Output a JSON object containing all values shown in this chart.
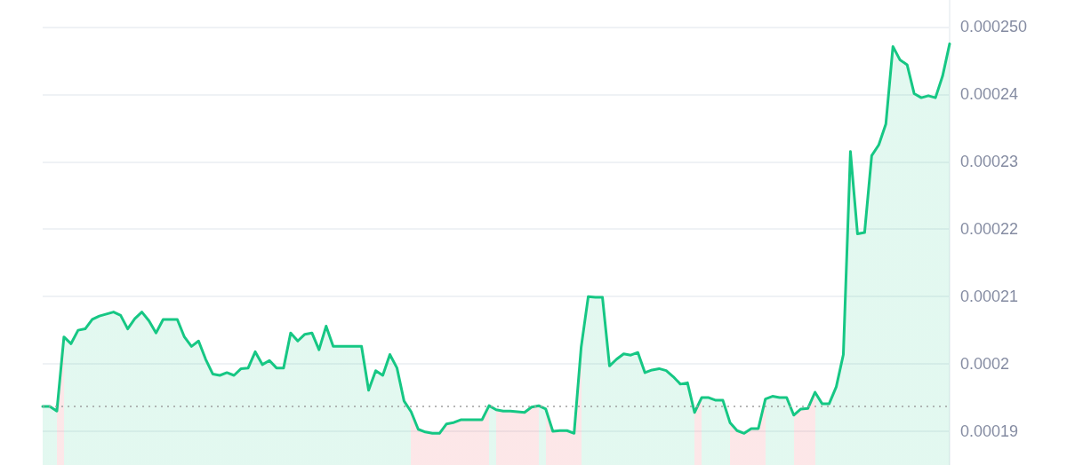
{
  "chart_data": {
    "type": "area",
    "categories": [
      null,
      null,
      null,
      null,
      null,
      null,
      null,
      null,
      null,
      null,
      null,
      null,
      null,
      null,
      null,
      null,
      null,
      null,
      null,
      null,
      null,
      null,
      null,
      null,
      null,
      null,
      null,
      null,
      null,
      null,
      null,
      null,
      null,
      null,
      null,
      null,
      null,
      null,
      null,
      null,
      null,
      null,
      null,
      null,
      null,
      null,
      null,
      null,
      null,
      null,
      null,
      null,
      null,
      null,
      null,
      null,
      null,
      null,
      null,
      null,
      null,
      null,
      null,
      null,
      null,
      null,
      null,
      null,
      null,
      null,
      null,
      null,
      null,
      null,
      null,
      null,
      null,
      null,
      null,
      null,
      null,
      null,
      null,
      null,
      null,
      null,
      null,
      null,
      null,
      null,
      null,
      null,
      null,
      null,
      null,
      null,
      null,
      null,
      null,
      null,
      null,
      null,
      null,
      null,
      null,
      null,
      null,
      null,
      null,
      null,
      null,
      null,
      null,
      null,
      null,
      null,
      null,
      null,
      null,
      null,
      null,
      null,
      null,
      null,
      null,
      null,
      null,
      null,
      null
    ],
    "series": [
      {
        "color": "#16c784",
        "values": [
          0.0001937,
          0.0001937,
          0.000193,
          0.000204,
          0.000203,
          0.000205,
          0.0002052,
          0.0002066,
          0.0002071,
          0.0002074,
          0.0002077,
          0.0002072,
          0.0002052,
          0.0002067,
          0.0002077,
          0.0002064,
          0.0002046,
          0.0002066,
          0.0002066,
          0.0002066,
          0.000204,
          0.0002026,
          0.0002034,
          0.0002007,
          0.0001985,
          0.0001983,
          0.0001987,
          0.0001983,
          0.0001993,
          0.0001994,
          0.0002018,
          0.0001999,
          0.0002005,
          0.0001994,
          0.0001994,
          0.0002046,
          0.0002034,
          0.0002044,
          0.0002046,
          0.0002021,
          0.0002056,
          0.0002026,
          0.0002026,
          0.0002026,
          0.0002026,
          0.0002026,
          0.0001961,
          0.000199,
          0.0001983,
          0.0002014,
          0.0001994,
          0.0001945,
          0.0001929,
          0.0001903,
          0.0001899,
          0.0001897,
          0.0001897,
          0.0001911,
          0.0001913,
          0.0001917,
          0.0001917,
          0.0001917,
          0.0001917,
          0.0001938,
          0.0001932,
          0.000193,
          0.000193,
          0.0001929,
          0.0001928,
          0.0001936,
          0.0001938,
          0.0001933,
          0.00019,
          0.0001901,
          0.0001901,
          0.0001897,
          0.0002025,
          0.00021,
          0.0002099,
          0.0002099,
          0.0001997,
          0.0002007,
          0.0002015,
          0.0002013,
          0.0002017,
          0.0001987,
          0.0001991,
          0.0001993,
          0.000199,
          0.0001981,
          0.000197,
          0.0001972,
          0.0001928,
          0.000195,
          0.000195,
          0.0001946,
          0.0001946,
          0.0001913,
          0.0001901,
          0.0001897,
          0.0001904,
          0.0001904,
          0.0001948,
          0.0001952,
          0.000195,
          0.000195,
          0.0001924,
          0.0001933,
          0.0001934,
          0.0001958,
          0.0001941,
          0.0001941,
          0.0001966,
          0.0002014,
          0.0002315,
          0.0002193,
          0.0002195,
          0.0002309,
          0.0002325,
          0.0002356,
          0.0002471,
          0.0002451,
          0.0002444,
          0.0002401,
          0.0002395,
          0.0002398,
          0.0002395,
          0.0002427,
          0.0002475
        ],
        "colors": [
          "#16c784",
          "#16c784",
          "#ea3943",
          "#16c784",
          "#16c784",
          "#16c784",
          "#16c784",
          "#16c784",
          "#16c784",
          "#16c784",
          "#16c784",
          "#16c784",
          "#16c784",
          "#16c784",
          "#16c784",
          "#16c784",
          "#16c784",
          "#16c784",
          "#16c784",
          "#16c784",
          "#16c784",
          "#16c784",
          "#16c784",
          "#16c784",
          "#16c784",
          "#16c784",
          "#16c784",
          "#16c784",
          "#16c784",
          "#16c784",
          "#16c784",
          "#16c784",
          "#16c784",
          "#16c784",
          "#16c784",
          "#16c784",
          "#16c784",
          "#16c784",
          "#16c784",
          "#16c784",
          "#16c784",
          "#16c784",
          "#16c784",
          "#16c784",
          "#16c784",
          "#16c784",
          "#16c784",
          "#16c784",
          "#16c784",
          "#16c784",
          "#16c784",
          "#16c784",
          "#ea3943",
          "#ea3943",
          "#ea3943",
          "#ea3943",
          "#ea3943",
          "#ea3943",
          "#ea3943",
          "#ea3943",
          "#ea3943",
          "#ea3943",
          "#ea3943",
          "#16c784",
          "#ea3943",
          "#ea3943",
          "#ea3943",
          "#ea3943",
          "#ea3943",
          "#ea3943",
          "#16c784",
          "#ea3943",
          "#ea3943",
          "#ea3943",
          "#ea3943",
          "#ea3943",
          "#16c784",
          "#16c784",
          "#16c784",
          "#16c784",
          "#16c784",
          "#16c784",
          "#16c784",
          "#16c784",
          "#16c784",
          "#16c784",
          "#16c784",
          "#16c784",
          "#16c784",
          "#16c784",
          "#16c784",
          "#16c784",
          "#ea3943",
          "#16c784",
          "#16c784",
          "#16c784",
          "#16c784",
          "#ea3943",
          "#ea3943",
          "#ea3943",
          "#ea3943",
          "#ea3943",
          "#16c784",
          "#16c784",
          "#16c784",
          "#16c784",
          "#ea3943",
          "#ea3943",
          "#ea3943",
          "#16c784",
          "#16c784",
          "#16c784",
          "#16c784",
          "#16c784",
          "#16c784",
          "#16c784",
          "#16c784",
          "#16c784",
          "#16c784",
          "#16c784",
          "#16c784",
          "#16c784",
          "#16c784",
          "#16c784",
          "#16c784",
          "#16c784",
          "#16c784",
          "#16c784",
          "#16c784"
        ]
      }
    ],
    "ylim": [
      0.000185,
      0.000254
    ],
    "yticks": [
      0.00019,
      0.0002,
      0.00021,
      0.00022,
      0.00023,
      0.00024,
      {
        "value": 0.00025,
        "label": "0.000250"
      }
    ],
    "grid": "y",
    "ref_lines": [
      {
        "axis": "y",
        "value": 0.0001937,
        "color": "#9e9e9e",
        "line_style": "dotted"
      }
    ],
    "tick_labels": "y"
  }
}
